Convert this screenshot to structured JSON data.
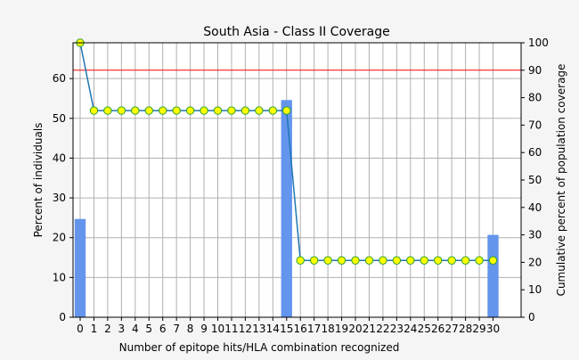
{
  "chart_data": {
    "type": "bar",
    "title": "South Asia - Class II Coverage",
    "xlabel": "Number of epitope hits/HLA combination recognized",
    "ylabel": "Percent of individuals",
    "y2label": "Cumulative percent of population coverage",
    "categories": [
      "0",
      "1",
      "2",
      "3",
      "4",
      "5",
      "6",
      "7",
      "8",
      "9",
      "10",
      "11",
      "12",
      "13",
      "14",
      "15",
      "16",
      "17",
      "18",
      "19",
      "20",
      "21",
      "22",
      "23",
      "24",
      "25",
      "26",
      "27",
      "28",
      "29",
      "30"
    ],
    "series": [
      {
        "kind": "bar",
        "axis": "left",
        "color": "#6495ED",
        "values": [
          24.7,
          0,
          0,
          0,
          0,
          0,
          0,
          0,
          0,
          0,
          0,
          0,
          0,
          0,
          0,
          54.6,
          0,
          0,
          0,
          0,
          0,
          0,
          0,
          0,
          0,
          0,
          0,
          0,
          0,
          0,
          20.7
        ]
      },
      {
        "kind": "line",
        "axis": "right",
        "color": "#1f77b4",
        "marker_fill": "#ffff00",
        "marker_edge": "#2ca02c",
        "values": [
          100,
          75.3,
          75.3,
          75.3,
          75.3,
          75.3,
          75.3,
          75.3,
          75.3,
          75.3,
          75.3,
          75.3,
          75.3,
          75.3,
          75.3,
          75.3,
          20.7,
          20.7,
          20.7,
          20.7,
          20.7,
          20.7,
          20.7,
          20.7,
          20.7,
          20.7,
          20.7,
          20.7,
          20.7,
          20.7,
          20.7
        ]
      }
    ],
    "reference_line": {
      "axis": "right",
      "value": 90,
      "color": "#ff0000"
    },
    "ylim": [
      0,
      69
    ],
    "y2lim": [
      0,
      100
    ],
    "yticks": [
      0,
      10,
      20,
      30,
      40,
      50,
      60
    ],
    "y2ticks": [
      0,
      10,
      20,
      30,
      40,
      50,
      60,
      70,
      80,
      90,
      100
    ],
    "grid": true
  }
}
